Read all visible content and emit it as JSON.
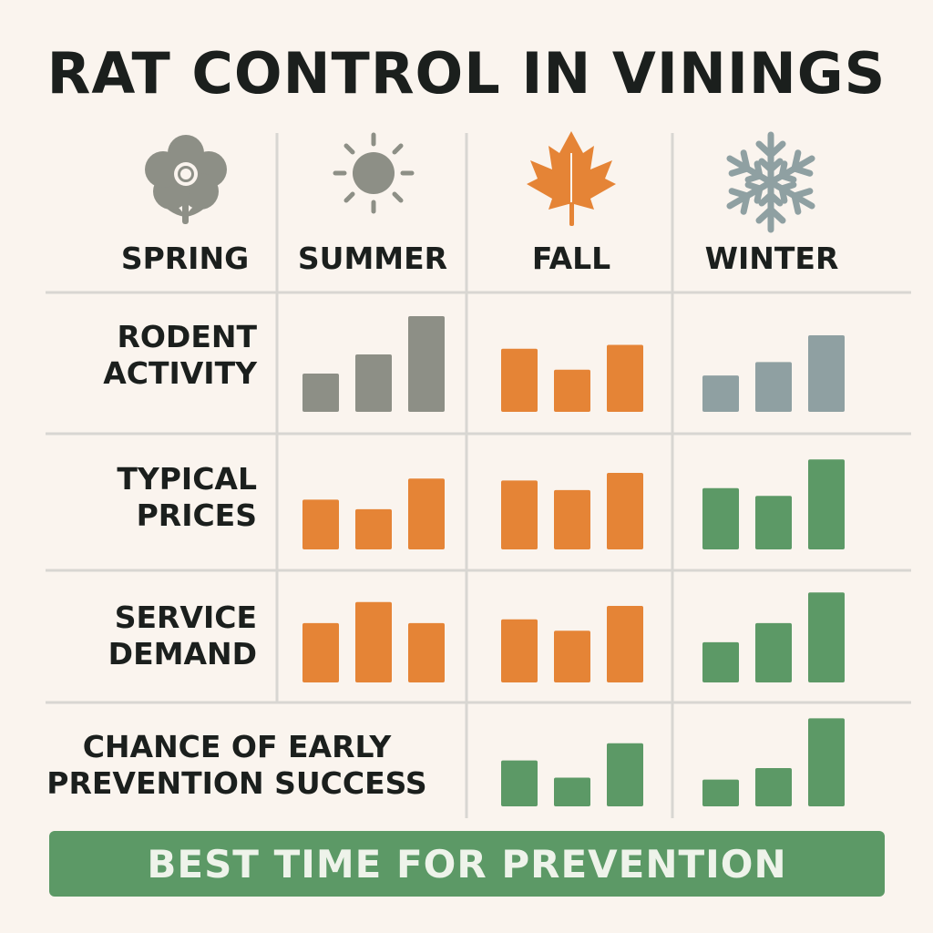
{
  "title": "RAT CONTROL IN VININGS",
  "colors": {
    "gray": "#8d8f86",
    "orange": "#e58436",
    "blue_gray": "#8fa0a2",
    "green": "#5c9966",
    "background": "#faf4ee",
    "grid": "#d8d6d2"
  },
  "seasons": [
    {
      "label": "SPRING",
      "icon": "flower-icon"
    },
    {
      "label": "SUMMER",
      "icon": "sun-icon"
    },
    {
      "label": "FALL",
      "icon": "maple-leaf-icon"
    },
    {
      "label": "WINTER",
      "icon": "snowflake-icon"
    }
  ],
  "rows": [
    {
      "label_lines": [
        "RODENT",
        "ACTIVITY"
      ]
    },
    {
      "label_lines": [
        "TYPICAL",
        "PRICES"
      ]
    },
    {
      "label_lines": [
        "SERVICE",
        "DEMAND"
      ]
    },
    {
      "label_lines": [
        "CHANCE OF EARLY",
        "PREVENTION SUCCESS"
      ]
    }
  ],
  "banner": {
    "text": "BEST TIME FOR PREVENTION"
  },
  "chart_data": [
    {
      "type": "bar",
      "metric": "RODENT ACTIVITY",
      "season": "SUMMER",
      "values": [
        2,
        3,
        5
      ],
      "color": "gray",
      "ylim": [
        0,
        5
      ]
    },
    {
      "type": "bar",
      "metric": "RODENT ACTIVITY",
      "season": "FALL",
      "values": [
        3.3,
        2.2,
        3.5
      ],
      "color": "orange",
      "ylim": [
        0,
        5
      ]
    },
    {
      "type": "bar",
      "metric": "RODENT ACTIVITY",
      "season": "WINTER",
      "values": [
        1.9,
        2.6,
        4
      ],
      "color": "blue_gray",
      "ylim": [
        0,
        5
      ]
    },
    {
      "type": "bar",
      "metric": "TYPICAL PRICES",
      "season": "SUMMER",
      "values": [
        2.6,
        2.1,
        3.7
      ],
      "color": "orange",
      "ylim": [
        0,
        5
      ]
    },
    {
      "type": "bar",
      "metric": "TYPICAL PRICES",
      "season": "FALL",
      "values": [
        3.6,
        3.1,
        4
      ],
      "color": "orange",
      "ylim": [
        0,
        5
      ]
    },
    {
      "type": "bar",
      "metric": "TYPICAL PRICES",
      "season": "WINTER",
      "values": [
        3.2,
        2.8,
        4.7
      ],
      "color": "green",
      "ylim": [
        0,
        5
      ]
    },
    {
      "type": "bar",
      "metric": "SERVICE DEMAND",
      "season": "SUMMER",
      "values": [
        3.1,
        4.2,
        3.1
      ],
      "color": "orange",
      "ylim": [
        0,
        5
      ]
    },
    {
      "type": "bar",
      "metric": "SERVICE DEMAND",
      "season": "FALL",
      "values": [
        3.3,
        2.7,
        4
      ],
      "color": "orange",
      "ylim": [
        0,
        5
      ]
    },
    {
      "type": "bar",
      "metric": "SERVICE DEMAND",
      "season": "WINTER",
      "values": [
        2.1,
        3.1,
        4.7
      ],
      "color": "green",
      "ylim": [
        0,
        5
      ]
    },
    {
      "type": "bar",
      "metric": "CHANCE OF EARLY PREVENTION SUCCESS",
      "season": "FALL",
      "values": [
        2.4,
        1.5,
        3.3
      ],
      "color": "green",
      "ylim": [
        0,
        5
      ]
    },
    {
      "type": "bar",
      "metric": "CHANCE OF EARLY PREVENTION SUCCESS",
      "season": "WINTER",
      "values": [
        1.4,
        2,
        4.6
      ],
      "color": "green",
      "ylim": [
        0,
        5
      ]
    }
  ]
}
